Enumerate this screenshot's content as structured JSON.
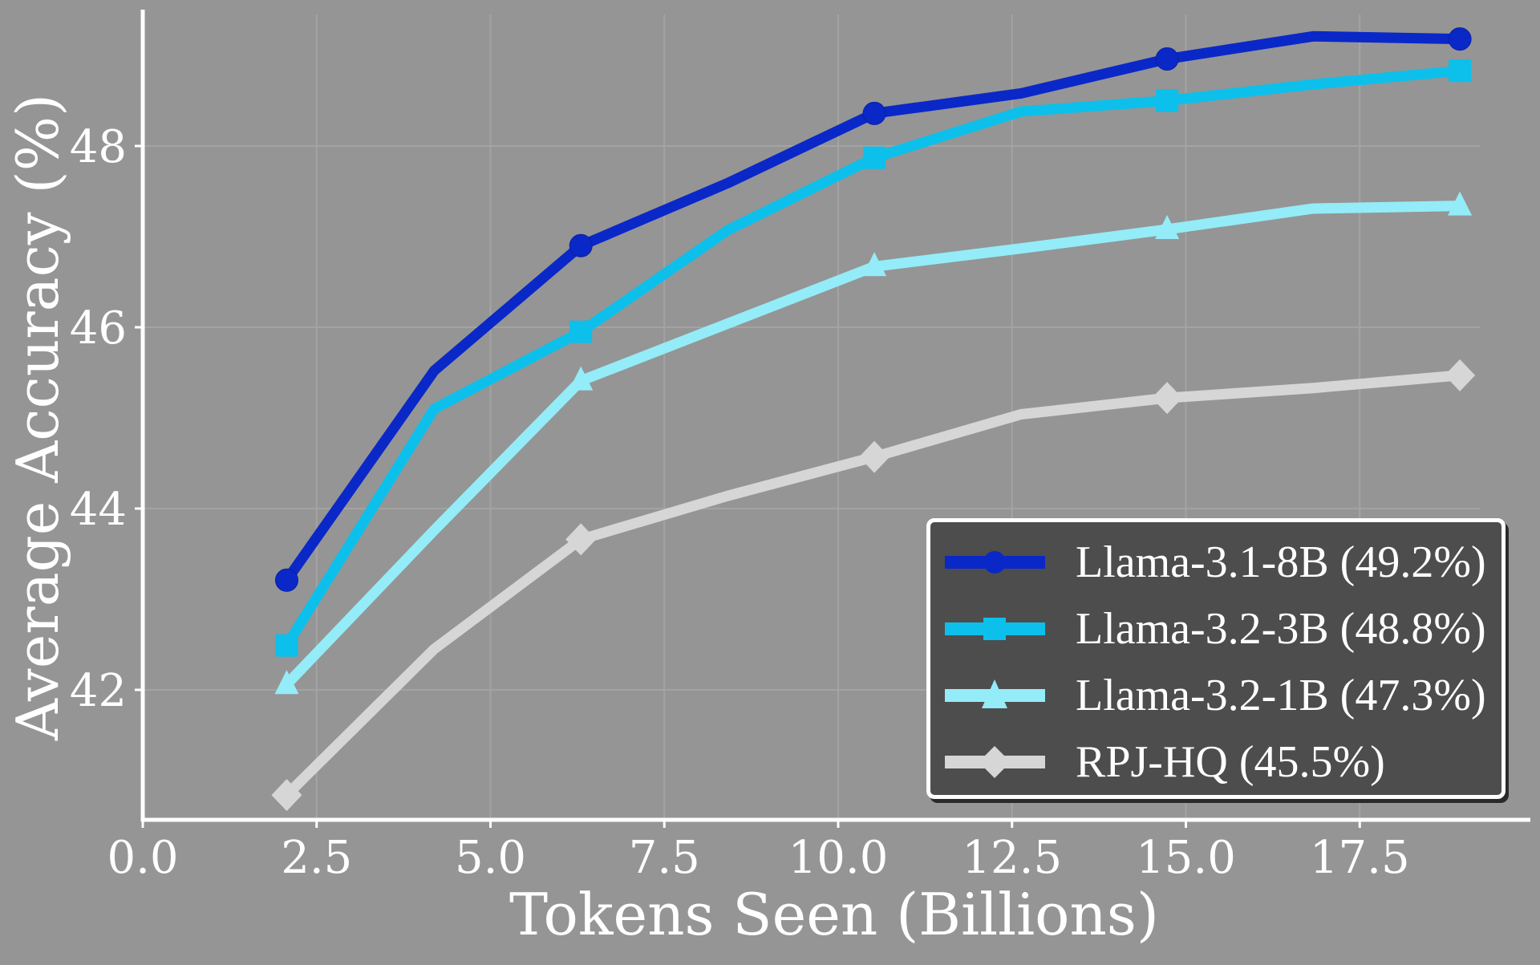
{
  "chart_data": {
    "type": "line",
    "title": "",
    "xlabel": "Tokens Seen (Billions)",
    "ylabel": "Average Accuracy (%)",
    "xlim": [
      0,
      19.8
    ],
    "ylim": [
      40.5,
      49.5
    ],
    "x_ticks": [
      "0.0",
      "2.5",
      "5.0",
      "7.5",
      "10.0",
      "12.5",
      "15.0",
      "17.5"
    ],
    "x_tick_values": [
      0,
      2.5,
      5.0,
      7.5,
      10.0,
      12.5,
      15.0,
      17.5
    ],
    "y_ticks": [
      "42",
      "44",
      "46",
      "48"
    ],
    "y_tick_values": [
      42,
      44,
      46,
      48
    ],
    "grid": true,
    "legend_position": "lower right",
    "x": [
      2.07,
      4.19,
      6.3,
      8.41,
      10.52,
      12.63,
      14.73,
      16.83,
      18.94
    ],
    "series": [
      {
        "name": "Llama-3.1-8B (49.2%)",
        "color": "#0a28c8",
        "marker": "circle",
        "marker_indices": [
          0,
          2,
          4,
          6,
          8
        ],
        "values": [
          43.21,
          45.52,
          46.9,
          47.59,
          48.36,
          48.58,
          48.96,
          49.21,
          49.18
        ]
      },
      {
        "name": "Llama-3.2-3B (48.8%)",
        "color": "#0cc0eb",
        "marker": "square",
        "marker_indices": [
          0,
          2,
          4,
          6,
          8
        ],
        "values": [
          42.49,
          45.1,
          45.95,
          47.07,
          47.87,
          48.38,
          48.5,
          48.68,
          48.83
        ]
      },
      {
        "name": "Llama-3.2-1B (47.3%)",
        "color": "#94ecf8",
        "marker": "triangle",
        "marker_indices": [
          0,
          2,
          4,
          6,
          8
        ],
        "values": [
          42.06,
          43.76,
          45.41,
          46.04,
          46.67,
          46.87,
          47.08,
          47.31,
          47.34
        ]
      },
      {
        "name": "RPJ-HQ (45.5%)",
        "color": "#d6d6d6",
        "marker": "diamond",
        "marker_indices": [
          0,
          2,
          4,
          6,
          8
        ],
        "values": [
          40.84,
          42.45,
          43.66,
          44.14,
          44.57,
          45.04,
          45.22,
          45.33,
          45.47
        ]
      }
    ]
  },
  "legend": {
    "items": [
      {
        "label": "Llama-3.1-8B (49.2%)",
        "color": "#0a28c8",
        "marker": "circle"
      },
      {
        "label": "Llama-3.2-3B (48.8%)",
        "color": "#0cc0eb",
        "marker": "square"
      },
      {
        "label": "Llama-3.2-1B (47.3%)",
        "color": "#94ecf8",
        "marker": "triangle"
      },
      {
        "label": "RPJ-HQ (45.5%)",
        "color": "#d6d6d6",
        "marker": "diamond"
      }
    ]
  },
  "axes": {
    "xlabel": "Tokens Seen (Billions)",
    "ylabel": "Average Accuracy (%)"
  },
  "colors": {
    "background": "#959595",
    "axis": "#ffffff",
    "grid": "#a3a3a3",
    "legend_bg": "#4d4d4d"
  }
}
